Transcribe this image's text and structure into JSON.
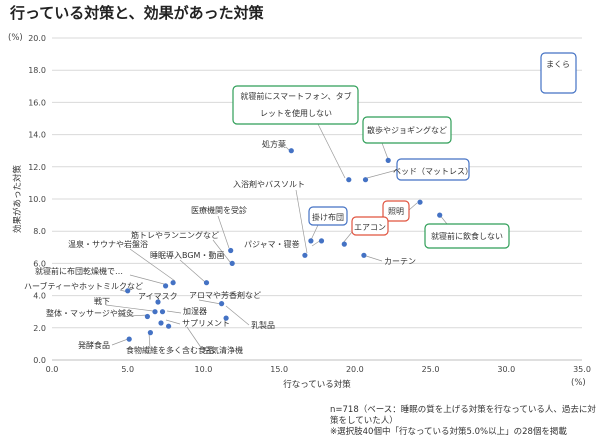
{
  "title": "行っている対策と、効果があった対策",
  "notes": [
    "n=718（ベース：睡眠の質を上げる対策を行なっている人、過去に対策をしていた人）",
    "※選択肢40個中「行なっている対策5.0%以上」の28個を掲載"
  ],
  "colors": {
    "point": "#4472c4",
    "callout_blue": "#4472c4",
    "callout_green": "#2e9e57",
    "callout_red": "#e0533f",
    "grid": "#d9d9d9",
    "leader": "#9a9a9a"
  },
  "chart_data": {
    "type": "scatter",
    "xlabel": "行なっている対策",
    "ylabel": "効果があった対策",
    "x_unit": "(%)",
    "y_unit": "(%)",
    "xlim": [
      0,
      35
    ],
    "ylim": [
      0,
      20
    ],
    "xticks": [
      "0.0",
      "5.0",
      "10.0",
      "15.0",
      "20.0",
      "25.0",
      "30.0",
      "35.0"
    ],
    "yticks": [
      "0.0",
      "2.0",
      "4.0",
      "6.0",
      "8.0",
      "10.0",
      "12.0",
      "14.0",
      "16.0",
      "18.0",
      "20.0"
    ],
    "grid": "horizontal",
    "points": [
      {
        "label": "まくら",
        "x": 33.5,
        "y": 17.3,
        "callout": "blue"
      },
      {
        "label": "就寝前にスマートフォン、タブレットを使用しない",
        "x": 19.6,
        "y": 11.2,
        "callout": "green"
      },
      {
        "label": "散歩やジョギングなど",
        "x": 22.2,
        "y": 12.4,
        "callout": "green"
      },
      {
        "label": "ベッド（マットレス）",
        "x": 20.7,
        "y": 11.2,
        "callout": "blue"
      },
      {
        "label": "処方薬",
        "x": 15.8,
        "y": 13.0
      },
      {
        "label": "入浴剤やバスソルト",
        "x": 16.7,
        "y": 6.5
      },
      {
        "label": "掛け布団",
        "x": 17.1,
        "y": 7.4,
        "callout": "blue"
      },
      {
        "label": "照明",
        "x": 24.3,
        "y": 9.8,
        "callout": "red"
      },
      {
        "label": "エアコン",
        "x": 19.3,
        "y": 7.2,
        "callout": "red"
      },
      {
        "label": "就寝前に飲食しない",
        "x": 25.6,
        "y": 9.0,
        "callout": "green"
      },
      {
        "label": "パジャマ・寝巻",
        "x": 17.8,
        "y": 7.4
      },
      {
        "label": "カーテン",
        "x": 20.6,
        "y": 6.5
      },
      {
        "label": "医療機関を受診",
        "x": 11.8,
        "y": 6.8
      },
      {
        "label": "筋トレやランニングなど",
        "x": 11.9,
        "y": 6.0
      },
      {
        "label": "温泉・サウナや岩盤浴",
        "x": 8.0,
        "y": 4.8
      },
      {
        "label": "睡眠導入BGM・動画",
        "x": 10.2,
        "y": 4.8
      },
      {
        "label": "就寝前に布団乾燥機で…",
        "x": 7.5,
        "y": 4.6
      },
      {
        "label": "ハーブティーやホットミルクなど",
        "x": 5.0,
        "y": 4.3
      },
      {
        "label": "アイマスク",
        "x": 7.0,
        "y": 3.6
      },
      {
        "label": "アロマや芳香剤など",
        "x": 11.2,
        "y": 3.5
      },
      {
        "label": "戦下",
        "x": 6.8,
        "y": 3.0
      },
      {
        "label": "加湿器",
        "x": 7.3,
        "y": 3.0
      },
      {
        "label": "整体・マッサージや鍼灸",
        "x": 6.3,
        "y": 2.7
      },
      {
        "label": "サプリメント",
        "x": 7.2,
        "y": 2.3
      },
      {
        "label": "乳製品",
        "x": 11.5,
        "y": 2.6
      },
      {
        "label": "発酵食品",
        "x": 5.1,
        "y": 1.3
      },
      {
        "label": "食物繊維を多く含む食品",
        "x": 6.5,
        "y": 1.7
      },
      {
        "label": "空気清浄機",
        "x": 7.7,
        "y": 2.1
      }
    ]
  }
}
